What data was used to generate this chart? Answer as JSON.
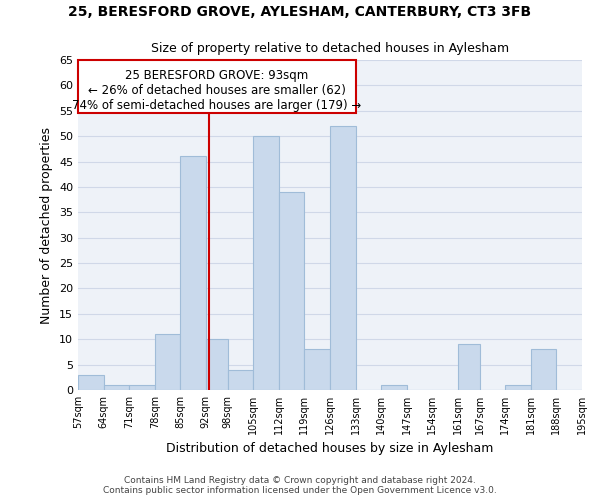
{
  "title": "25, BERESFORD GROVE, AYLESHAM, CANTERBURY, CT3 3FB",
  "subtitle": "Size of property relative to detached houses in Aylesham",
  "xlabel": "Distribution of detached houses by size in Aylesham",
  "ylabel": "Number of detached properties",
  "bin_edges": [
    57,
    64,
    71,
    78,
    85,
    92,
    98,
    105,
    112,
    119,
    126,
    133,
    140,
    147,
    154,
    161,
    167,
    174,
    181,
    188,
    195
  ],
  "bar_heights": [
    3,
    1,
    1,
    11,
    46,
    10,
    4,
    50,
    39,
    8,
    52,
    0,
    1,
    0,
    0,
    9,
    0,
    1,
    8,
    0
  ],
  "tick_labels": [
    "57sqm",
    "64sqm",
    "71sqm",
    "78sqm",
    "85sqm",
    "92sqm",
    "98sqm",
    "105sqm",
    "112sqm",
    "119sqm",
    "126sqm",
    "133sqm",
    "140sqm",
    "147sqm",
    "154sqm",
    "161sqm",
    "167sqm",
    "174sqm",
    "181sqm",
    "188sqm",
    "195sqm"
  ],
  "bar_color": "#c9d9ec",
  "bar_edge_color": "#a0bcd8",
  "reference_line_x": 93,
  "reference_line_color": "#cc0000",
  "annotation_line1": "25 BERESFORD GROVE: 93sqm",
  "annotation_line2": "← 26% of detached houses are smaller (62)",
  "annotation_line3": "74% of semi-detached houses are larger (179) →",
  "ylim": [
    0,
    65
  ],
  "yticks": [
    0,
    5,
    10,
    15,
    20,
    25,
    30,
    35,
    40,
    45,
    50,
    55,
    60,
    65
  ],
  "grid_color": "#d0d8e8",
  "bg_color": "#eef2f8",
  "footer_line1": "Contains HM Land Registry data © Crown copyright and database right 2024.",
  "footer_line2": "Contains public sector information licensed under the Open Government Licence v3.0."
}
